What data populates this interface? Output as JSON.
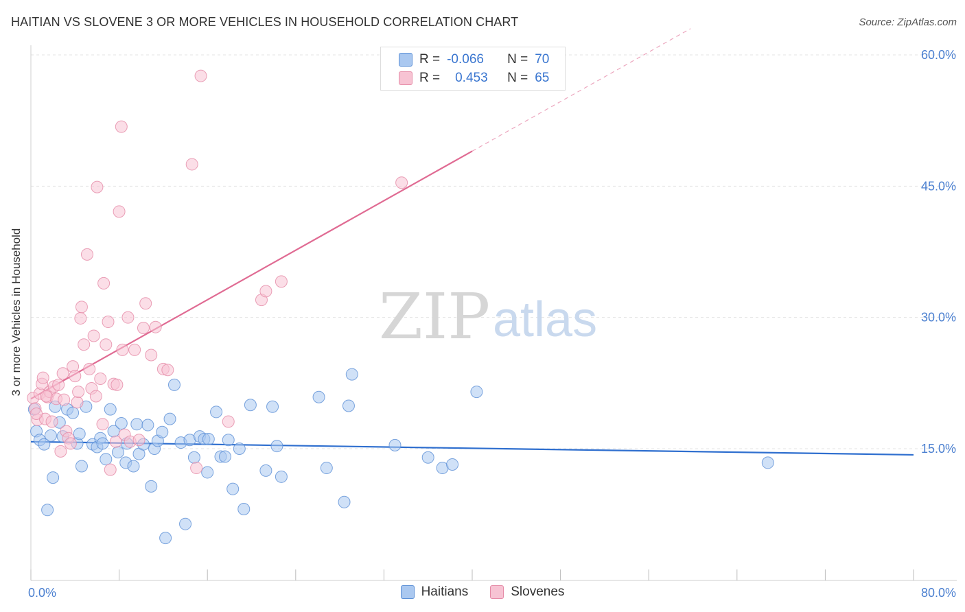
{
  "header": {
    "title": "HAITIAN VS SLOVENE 3 OR MORE VEHICLES IN HOUSEHOLD CORRELATION CHART",
    "source": "Source: ZipAtlas.com"
  },
  "legend_top": {
    "rows": [
      {
        "r_label": "R =",
        "r_value": "-0.066",
        "n_label": "N =",
        "n_value": "70"
      },
      {
        "r_label": "R =",
        "r_value": "0.453",
        "n_label": "N =",
        "n_value": "65"
      }
    ]
  },
  "legend_bottom": {
    "items": [
      {
        "label": "Haitians"
      },
      {
        "label": "Slovenes"
      }
    ]
  },
  "watermark": {
    "zip": "ZIP",
    "atlas": "atlas"
  },
  "colors": {
    "haitian_fill": "#aac8f0",
    "haitian_stroke": "#5b8fd6",
    "haitian_line": "#2f6fcf",
    "slovene_fill": "#f7c3d3",
    "slovene_stroke": "#e58aa6",
    "slovene_line": "#e06b93",
    "tick_text": "#4a7fd0",
    "grid": "#e3e3e3"
  },
  "chart_data": {
    "type": "scatter",
    "title": "HAITIAN VS SLOVENE 3 OR MORE VEHICLES IN HOUSEHOLD CORRELATION CHART",
    "xlabel": "",
    "ylabel": "3 or more Vehicles in Household",
    "xlim": [
      0,
      80
    ],
    "ylim": [
      0,
      63
    ],
    "x_tick_labels": [
      "0.0%",
      "80.0%"
    ],
    "y_ticks": [
      15,
      30,
      45,
      60
    ],
    "y_tick_labels": [
      "15.0%",
      "30.0%",
      "45.0%",
      "60.0%"
    ],
    "grid": true,
    "legend_placement": "top-center",
    "series": [
      {
        "name": "Haitians",
        "r": -0.066,
        "n": 70,
        "trend": {
          "x": [
            0,
            80
          ],
          "y": [
            15.8,
            14.3
          ],
          "dashed_from_x": null
        },
        "points": [
          [
            0.3,
            19.5
          ],
          [
            0.5,
            17.0
          ],
          [
            0.8,
            16.0
          ],
          [
            1.2,
            15.5
          ],
          [
            1.5,
            8.0
          ],
          [
            1.8,
            16.5
          ],
          [
            2.0,
            11.7
          ],
          [
            2.2,
            19.8
          ],
          [
            2.6,
            18.0
          ],
          [
            2.9,
            16.4
          ],
          [
            3.3,
            19.5
          ],
          [
            3.8,
            19.1
          ],
          [
            4.2,
            15.6
          ],
          [
            4.4,
            16.7
          ],
          [
            4.6,
            13.0
          ],
          [
            5.0,
            19.8
          ],
          [
            5.6,
            15.5
          ],
          [
            6.0,
            15.2
          ],
          [
            6.3,
            16.2
          ],
          [
            6.5,
            15.6
          ],
          [
            6.8,
            13.8
          ],
          [
            7.2,
            19.5
          ],
          [
            7.5,
            17.0
          ],
          [
            7.9,
            14.6
          ],
          [
            8.2,
            17.9
          ],
          [
            8.6,
            13.4
          ],
          [
            8.7,
            15.6
          ],
          [
            9.3,
            13.0
          ],
          [
            9.6,
            17.8
          ],
          [
            9.8,
            14.4
          ],
          [
            10.2,
            15.5
          ],
          [
            10.6,
            17.7
          ],
          [
            10.9,
            10.7
          ],
          [
            11.2,
            15.0
          ],
          [
            11.5,
            15.9
          ],
          [
            11.9,
            16.9
          ],
          [
            12.2,
            4.8
          ],
          [
            12.6,
            18.4
          ],
          [
            13.0,
            22.3
          ],
          [
            13.6,
            15.7
          ],
          [
            14.0,
            6.4
          ],
          [
            14.4,
            16.0
          ],
          [
            14.8,
            14.0
          ],
          [
            15.3,
            16.4
          ],
          [
            15.7,
            16.1
          ],
          [
            16.1,
            16.1
          ],
          [
            16.0,
            12.3
          ],
          [
            16.8,
            19.2
          ],
          [
            17.2,
            14.1
          ],
          [
            17.6,
            14.1
          ],
          [
            17.9,
            16.0
          ],
          [
            18.3,
            10.4
          ],
          [
            18.9,
            15.0
          ],
          [
            19.3,
            8.1
          ],
          [
            19.9,
            20.0
          ],
          [
            21.3,
            12.5
          ],
          [
            21.9,
            19.8
          ],
          [
            22.3,
            15.3
          ],
          [
            22.7,
            11.8
          ],
          [
            26.1,
            20.9
          ],
          [
            26.8,
            12.8
          ],
          [
            28.4,
            8.9
          ],
          [
            28.8,
            19.9
          ],
          [
            29.1,
            23.5
          ],
          [
            33.0,
            15.4
          ],
          [
            36.0,
            14.0
          ],
          [
            37.3,
            12.8
          ],
          [
            38.2,
            13.2
          ],
          [
            40.4,
            21.5
          ],
          [
            66.8,
            13.4
          ]
        ]
      },
      {
        "name": "Slovenes",
        "r": 0.453,
        "n": 65,
        "trend": {
          "x": [
            0,
            80
          ],
          "y": [
            20.7,
            77.3
          ],
          "dashed_from_x": 40.0
        },
        "points": [
          [
            0.2,
            20.8
          ],
          [
            0.4,
            19.6
          ],
          [
            0.6,
            18.3
          ],
          [
            0.8,
            21.3
          ],
          [
            1.0,
            22.4
          ],
          [
            1.1,
            23.1
          ],
          [
            1.3,
            18.4
          ],
          [
            1.5,
            20.9
          ],
          [
            1.7,
            21.5
          ],
          [
            1.9,
            18.1
          ],
          [
            2.1,
            22.1
          ],
          [
            2.3,
            20.7
          ],
          [
            2.5,
            22.3
          ],
          [
            2.7,
            14.7
          ],
          [
            2.9,
            23.6
          ],
          [
            3.0,
            20.6
          ],
          [
            3.2,
            17.0
          ],
          [
            3.4,
            16.2
          ],
          [
            3.6,
            15.6
          ],
          [
            3.8,
            24.4
          ],
          [
            4.0,
            23.3
          ],
          [
            4.2,
            20.3
          ],
          [
            4.3,
            21.5
          ],
          [
            4.5,
            29.9
          ],
          [
            4.6,
            31.2
          ],
          [
            4.8,
            26.9
          ],
          [
            5.1,
            37.2
          ],
          [
            5.3,
            24.1
          ],
          [
            5.5,
            21.9
          ],
          [
            5.7,
            27.9
          ],
          [
            5.9,
            21.0
          ],
          [
            6.0,
            44.9
          ],
          [
            6.3,
            23.0
          ],
          [
            6.5,
            17.8
          ],
          [
            6.6,
            33.9
          ],
          [
            6.8,
            26.9
          ],
          [
            7.0,
            29.5
          ],
          [
            7.2,
            12.6
          ],
          [
            7.5,
            22.4
          ],
          [
            7.7,
            15.8
          ],
          [
            7.8,
            22.3
          ],
          [
            8.0,
            42.1
          ],
          [
            8.2,
            51.8
          ],
          [
            8.3,
            26.3
          ],
          [
            8.5,
            16.6
          ],
          [
            8.8,
            30.0
          ],
          [
            9.0,
            15.8
          ],
          [
            9.4,
            26.3
          ],
          [
            9.8,
            16.0
          ],
          [
            10.2,
            28.8
          ],
          [
            10.4,
            31.6
          ],
          [
            10.9,
            25.7
          ],
          [
            11.3,
            28.9
          ],
          [
            12.0,
            24.1
          ],
          [
            12.4,
            24.0
          ],
          [
            14.6,
            47.5
          ],
          [
            15.0,
            12.8
          ],
          [
            15.4,
            57.6
          ],
          [
            17.9,
            18.1
          ],
          [
            20.9,
            32.0
          ],
          [
            21.3,
            33.0
          ],
          [
            22.7,
            34.1
          ],
          [
            33.6,
            45.4
          ],
          [
            0.5,
            19.0
          ],
          [
            1.4,
            21.0
          ]
        ]
      }
    ]
  }
}
